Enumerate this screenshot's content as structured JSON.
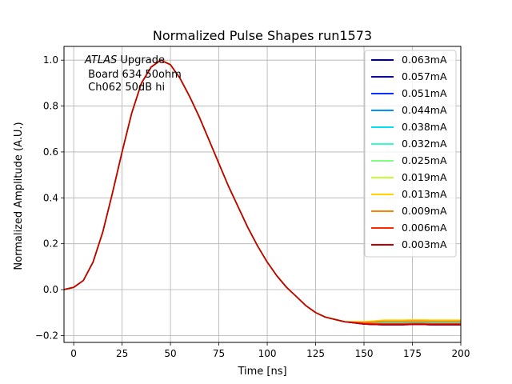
{
  "chart_data": {
    "type": "line",
    "title": "Normalized Pulse Shapes run1573",
    "xlabel": "Time [ns]",
    "ylabel": "Normalized Amplitude (A.U.)",
    "xlim": [
      -5,
      200
    ],
    "ylim": [
      -0.23,
      1.06
    ],
    "xticks": [
      0,
      25,
      50,
      75,
      100,
      125,
      150,
      175,
      200
    ],
    "yticks": [
      -0.2,
      0.0,
      0.2,
      0.4,
      0.6,
      0.8,
      1.0
    ],
    "xtick_labels": [
      "0",
      "25",
      "50",
      "75",
      "100",
      "125",
      "150",
      "175",
      "200"
    ],
    "ytick_labels": [
      "−0.2",
      "0.0",
      "0.2",
      "0.4",
      "0.6",
      "0.8",
      "1.0"
    ],
    "grid": true,
    "legend_position": "top-right",
    "annotation": {
      "italic": "ATLAS",
      "rest": " Upgrade",
      "line2": " Board 634 50ohm",
      "line3": " Ch062 50dB hi"
    },
    "x": [
      -5,
      0,
      5,
      10,
      15,
      20,
      25,
      30,
      35,
      40,
      45,
      50,
      55,
      60,
      65,
      70,
      75,
      80,
      85,
      90,
      95,
      100,
      105,
      110,
      115,
      120,
      125,
      130,
      135,
      140,
      145,
      150,
      155,
      160,
      165,
      170,
      175,
      180,
      185,
      190,
      195,
      200
    ],
    "base_shape": [
      0.0,
      0.01,
      0.04,
      0.12,
      0.25,
      0.42,
      0.6,
      0.77,
      0.9,
      0.97,
      1.0,
      0.98,
      0.92,
      0.84,
      0.75,
      0.65,
      0.55,
      0.45,
      0.36,
      0.27,
      0.19,
      0.12,
      0.06,
      0.01,
      -0.03,
      -0.07,
      -0.1,
      -0.12,
      -0.13,
      -0.14,
      -0.145,
      -0.15,
      -0.152,
      -0.153,
      -0.153,
      -0.153,
      -0.152,
      -0.152,
      -0.153,
      -0.153,
      -0.153,
      -0.153
    ],
    "series": [
      {
        "name": "0.063mA",
        "color": "#00007f",
        "tail_shift": 0.0
      },
      {
        "name": "0.057mA",
        "color": "#0000d5",
        "tail_shift": 0.0
      },
      {
        "name": "0.051mA",
        "color": "#0030ff",
        "tail_shift": 0.0
      },
      {
        "name": "0.044mA",
        "color": "#0090ff",
        "tail_shift": 0.005
      },
      {
        "name": "0.038mA",
        "color": "#00e0f0",
        "tail_shift": 0.01
      },
      {
        "name": "0.032mA",
        "color": "#30ffc6",
        "tail_shift": 0.01
      },
      {
        "name": "0.025mA",
        "color": "#80ff80",
        "tail_shift": 0.015
      },
      {
        "name": "0.019mA",
        "color": "#c6ff30",
        "tail_shift": 0.02
      },
      {
        "name": "0.013mA",
        "color": "#ffd200",
        "tail_shift": 0.02
      },
      {
        "name": "0.009mA",
        "color": "#ff8200",
        "tail_shift": 0.015
      },
      {
        "name": "0.006mA",
        "color": "#ff2800",
        "tail_shift": 0.005
      },
      {
        "name": "0.003mA",
        "color": "#c00000",
        "tail_shift": 0.0
      }
    ]
  }
}
